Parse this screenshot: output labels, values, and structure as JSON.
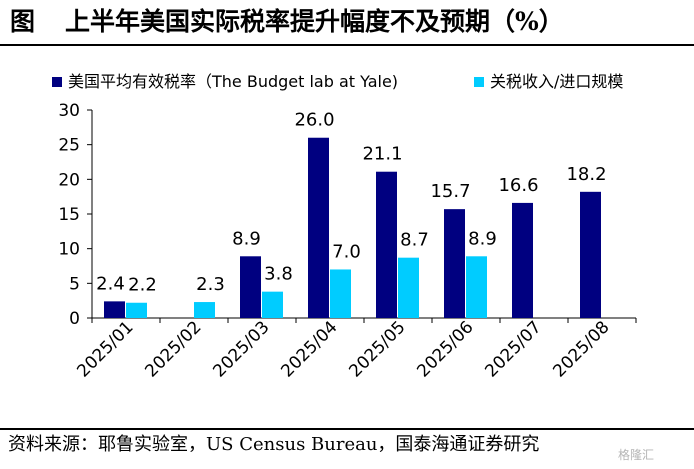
{
  "title": {
    "figure_label": "图",
    "text": "上半年美国实际税率提升幅度不及预期（%）"
  },
  "source": "资料来源：耶鲁实验室，US Census Bureau，国泰海通证券研究",
  "watermark": "格隆汇",
  "colors": {
    "series1": "#000080",
    "series2": "#00CCFF",
    "text": "#000000",
    "axis": "#000000"
  },
  "chart_data": {
    "type": "bar",
    "title": "上半年美国实际税率提升幅度不及预期（%）",
    "xlabel": "",
    "ylabel": "",
    "ylim": [
      0,
      30
    ],
    "yticks": [
      0,
      5,
      10,
      15,
      20,
      25,
      30
    ],
    "grid": false,
    "legend_position": "top",
    "categories": [
      "2025/01",
      "2025/02",
      "2025/03",
      "2025/04",
      "2025/05",
      "2025/06",
      "2025/07",
      "2025/08"
    ],
    "series": [
      {
        "name": "美国平均有效税率（The Budget lab at Yale)",
        "values": [
          2.4,
          null,
          8.9,
          26.0,
          21.1,
          15.7,
          16.6,
          18.2
        ],
        "labels": [
          "2.4",
          "",
          "8.9",
          "26.0",
          "21.1",
          "15.7",
          "16.6",
          "18.2"
        ]
      },
      {
        "name": "关税收入/进口规模",
        "values": [
          2.2,
          2.3,
          3.8,
          7.0,
          8.7,
          8.9,
          null,
          null
        ],
        "labels": [
          "2.2",
          "2.3",
          "3.8",
          "7.0",
          "8.7",
          "8.9",
          "",
          ""
        ]
      }
    ]
  }
}
